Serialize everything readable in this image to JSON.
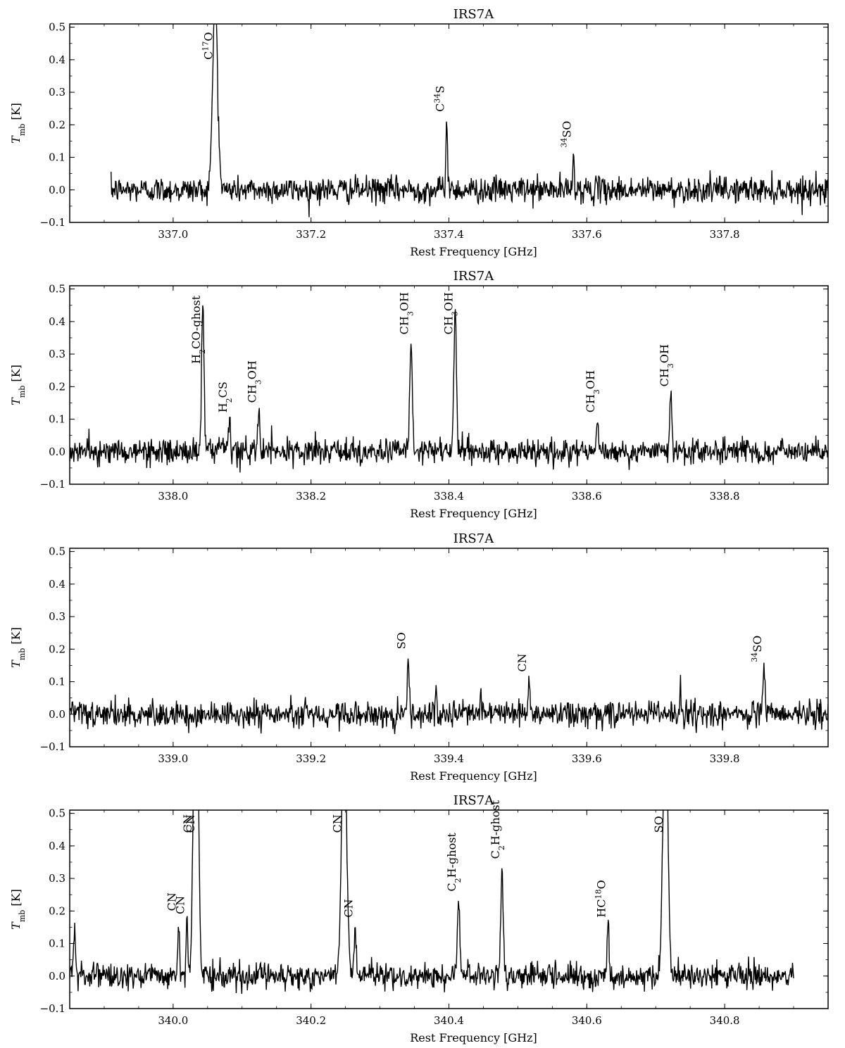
{
  "figure": {
    "panels": [
      {
        "title": "IRS7A",
        "xlabel": "Rest Frequency [GHz]",
        "ylabel_main": "T",
        "ylabel_sub": "mb",
        "ylabel_unit": " [K]"
      },
      {
        "title": "IRS7A",
        "xlabel": "Rest Frequency [GHz]",
        "ylabel_main": "T",
        "ylabel_sub": "mb",
        "ylabel_unit": " [K]"
      },
      {
        "title": "IRS7A",
        "xlabel": "Rest Frequency [GHz]",
        "ylabel_main": "T",
        "ylabel_sub": "mb",
        "ylabel_unit": " [K]"
      },
      {
        "title": "IRS7A",
        "xlabel": "Rest Frequency [GHz]",
        "ylabel_main": "T",
        "ylabel_sub": "mb",
        "ylabel_unit": " [K]"
      }
    ]
  },
  "chart_data": [
    {
      "type": "line",
      "title": "IRS7A",
      "xlabel": "Rest Frequency [GHz]",
      "ylabel": "T_mb [K]",
      "xlim": [
        336.85,
        337.95
      ],
      "ylim": [
        -0.1,
        0.51
      ],
      "xticks": [
        "337.0",
        "337.2",
        "337.4",
        "337.6",
        "337.8"
      ],
      "xtick_values": [
        337.0,
        337.2,
        337.4,
        337.6,
        337.8
      ],
      "yticks": [
        "−0.1",
        "0.0",
        "0.1",
        "0.2",
        "0.3",
        "0.4",
        "0.5"
      ],
      "ytick_values": [
        -0.1,
        0.0,
        0.1,
        0.2,
        0.3,
        0.4,
        0.5
      ],
      "grid": false,
      "data_range": [
        336.91,
        337.95
      ],
      "noise_rms": 0.02,
      "lines": [
        {
          "label": "C17O",
          "base": "C",
          "sup": "17",
          "tail": "O",
          "x": 337.061,
          "peak": 0.6,
          "width": 0.0035,
          "label_y": 0.4
        },
        {
          "label": "C34S",
          "base": "C",
          "sup": "34",
          "tail": "S",
          "x": 337.397,
          "peak": 0.22,
          "width": 0.0012,
          "label_y": 0.24
        },
        {
          "label": "34SO",
          "base": "",
          "sup": "34",
          "tail": "SO",
          "x": 337.581,
          "peak": 0.11,
          "width": 0.0012,
          "label_y": 0.13
        }
      ]
    },
    {
      "type": "line",
      "title": "IRS7A",
      "xlabel": "Rest Frequency [GHz]",
      "ylabel": "T_mb [K]",
      "xlim": [
        337.85,
        338.95
      ],
      "ylim": [
        -0.1,
        0.51
      ],
      "xticks": [
        "338.0",
        "338.2",
        "338.4",
        "338.6",
        "338.8"
      ],
      "xtick_values": [
        338.0,
        338.2,
        338.4,
        338.6,
        338.8
      ],
      "yticks": [
        "−0.1",
        "0.0",
        "0.1",
        "0.2",
        "0.3",
        "0.4",
        "0.5"
      ],
      "ytick_values": [
        -0.1,
        0.0,
        0.1,
        0.2,
        0.3,
        0.4,
        0.5
      ],
      "grid": false,
      "data_range": [
        337.85,
        338.95
      ],
      "noise_rms": 0.02,
      "lines": [
        {
          "label": "H2CO-ghost",
          "base": "H",
          "sub": "2",
          "tail": "CO-ghost",
          "x": 338.043,
          "peak": 0.46,
          "width": 0.0018,
          "label_y": 0.27
        },
        {
          "label": "H2CS",
          "base": "H",
          "sub": "2",
          "tail": "CS",
          "x": 338.082,
          "peak": 0.1,
          "width": 0.0012,
          "label_y": 0.12
        },
        {
          "label": "CH3OH",
          "base": "CH",
          "sub": "3",
          "tail": "OH",
          "x": 338.124,
          "peak": 0.13,
          "width": 0.0015,
          "label_y": 0.15
        },
        {
          "label": "CH3OH",
          "base": "CH",
          "sub": "3",
          "tail": "OH",
          "x": 338.345,
          "peak": 0.34,
          "width": 0.0018,
          "label_y": 0.36
        },
        {
          "label": "CH3OH",
          "base": "CH",
          "sub": "3",
          "tail": "OH",
          "x": 338.409,
          "peak": 0.45,
          "width": 0.0018,
          "label_y": 0.36
        },
        {
          "label": "CH3OH",
          "base": "CH",
          "sub": "3",
          "tail": "OH",
          "x": 338.615,
          "peak": 0.1,
          "width": 0.0015,
          "label_y": 0.12
        },
        {
          "label": "CH3OH",
          "base": "CH",
          "sub": "3",
          "tail": "OH",
          "x": 338.722,
          "peak": 0.18,
          "width": 0.0015,
          "label_y": 0.2
        }
      ]
    },
    {
      "type": "line",
      "title": "IRS7A",
      "xlabel": "Rest Frequency [GHz]",
      "ylabel": "T_mb [K]",
      "xlim": [
        338.85,
        339.95
      ],
      "ylim": [
        -0.1,
        0.51
      ],
      "xticks": [
        "339.0",
        "339.2",
        "339.4",
        "339.6",
        "339.8"
      ],
      "xtick_values": [
        339.0,
        339.2,
        339.4,
        339.6,
        339.8
      ],
      "yticks": [
        "−0.1",
        "0.0",
        "0.1",
        "0.2",
        "0.3",
        "0.4",
        "0.5"
      ],
      "ytick_values": [
        -0.1,
        0.0,
        0.1,
        0.2,
        0.3,
        0.4,
        0.5
      ],
      "grid": false,
      "data_range": [
        338.85,
        339.95
      ],
      "noise_rms": 0.02,
      "lines": [
        {
          "label": "SO",
          "base": "SO",
          "tail": "",
          "x": 339.341,
          "peak": 0.18,
          "width": 0.0015,
          "label_y": 0.2
        },
        {
          "label": "",
          "base": "",
          "tail": "",
          "x": 339.382,
          "peak": 0.08,
          "width": 0.0008,
          "label_y": 0
        },
        {
          "label": "",
          "base": "",
          "tail": "",
          "x": 339.446,
          "peak": 0.08,
          "width": 0.0008,
          "label_y": 0
        },
        {
          "label": "CN",
          "base": "CN",
          "tail": "",
          "x": 339.516,
          "peak": 0.11,
          "width": 0.0012,
          "label_y": 0.13
        },
        {
          "label": "",
          "base": "",
          "tail": "",
          "x": 339.736,
          "peak": 0.1,
          "width": 0.0008,
          "label_y": 0
        },
        {
          "label": "34SO",
          "base": "",
          "sup": "34",
          "tail": "SO",
          "x": 339.857,
          "peak": 0.14,
          "width": 0.0015,
          "label_y": 0.16
        }
      ]
    },
    {
      "type": "line",
      "title": "IRS7A",
      "xlabel": "Rest Frequency [GHz]",
      "ylabel": "T_mb [K]",
      "xlim": [
        339.85,
        340.95
      ],
      "ylim": [
        -0.1,
        0.51
      ],
      "xticks": [
        "340.0",
        "340.2",
        "340.4",
        "340.6",
        "340.8"
      ],
      "xtick_values": [
        340.0,
        340.2,
        340.4,
        340.6,
        340.8
      ],
      "yticks": [
        "−0.1",
        "0.0",
        "0.1",
        "0.2",
        "0.3",
        "0.4",
        "0.5"
      ],
      "ytick_values": [
        -0.1,
        0.0,
        0.1,
        0.2,
        0.3,
        0.4,
        0.5
      ],
      "grid": false,
      "data_range": [
        339.85,
        340.9
      ],
      "noise_rms": 0.02,
      "lines": [
        {
          "label": "",
          "base": "",
          "tail": "",
          "x": 339.857,
          "peak": 0.14,
          "width": 0.0015,
          "label_y": 0
        },
        {
          "label": "CN",
          "base": "CN",
          "tail": "",
          "x": 340.008,
          "peak": 0.18,
          "width": 0.0012,
          "label_y": 0.2
        },
        {
          "label": "CN",
          "base": "CN",
          "tail": "",
          "x": 340.02,
          "peak": 0.17,
          "width": 0.0012,
          "label_y": 0.19
        },
        {
          "label": "CN",
          "base": "CN",
          "tail": "",
          "x": 340.031,
          "peak": 0.7,
          "width": 0.0025,
          "label_y": 0.44
        },
        {
          "label": "CN",
          "base": "CN",
          "tail": "",
          "x": 340.035,
          "peak": 0.7,
          "width": 0.0025,
          "label_y": 0.44
        },
        {
          "label": "CN",
          "base": "CN",
          "tail": "",
          "x": 340.248,
          "peak": 0.8,
          "width": 0.0035,
          "label_y": 0.44
        },
        {
          "label": "CN",
          "base": "CN",
          "tail": "",
          "x": 340.264,
          "peak": 0.15,
          "width": 0.0015,
          "label_y": 0.18
        },
        {
          "label": "C2H-ghost",
          "base": "C",
          "sub": "2",
          "tail": "H-ghost",
          "x": 340.414,
          "peak": 0.24,
          "width": 0.0018,
          "label_y": 0.26
        },
        {
          "label": "C2H-ghost",
          "base": "C",
          "sub": "2",
          "tail": "H-ghost",
          "x": 340.477,
          "peak": 0.34,
          "width": 0.0018,
          "label_y": 0.36
        },
        {
          "label": "HC18O",
          "base": "HC",
          "sup": "18",
          "tail": "O",
          "x": 340.631,
          "peak": 0.16,
          "width": 0.0015,
          "label_y": 0.18
        },
        {
          "label": "SO",
          "base": "SO",
          "tail": "",
          "x": 340.714,
          "peak": 0.8,
          "width": 0.0035,
          "label_y": 0.44
        }
      ]
    }
  ]
}
